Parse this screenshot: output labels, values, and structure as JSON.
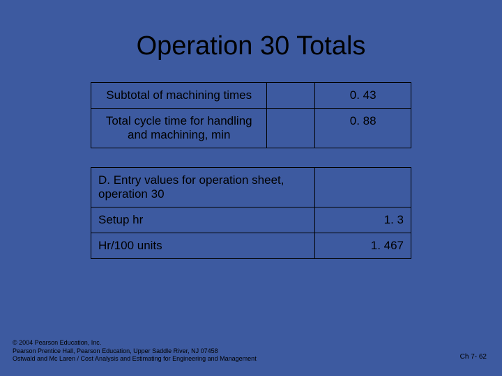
{
  "colors": {
    "background": "#3d5aa0",
    "text": "#000000",
    "border": "#000000"
  },
  "title": "Operation 30 Totals",
  "table1": {
    "rows": [
      {
        "label": "Subtotal of machining times",
        "value": "0. 43"
      },
      {
        "label": "Total cycle time for handling and machining, min",
        "value": "0. 88"
      }
    ]
  },
  "table2": {
    "header": "D. Entry values for operation sheet, operation 30",
    "rows": [
      {
        "label": "Setup hr",
        "value": "1. 3"
      },
      {
        "label": "Hr/100 units",
        "value": "1. 467"
      }
    ]
  },
  "footer": {
    "line1": "© 2004 Pearson Education, Inc.",
    "line2": "Pearson Prentice Hall, Pearson Education, Upper Saddle River, NJ 07458",
    "line3": "Ostwald and Mc Laren / Cost Analysis and Estimating for Engineering and Management",
    "pageref": "Ch 7- 62"
  }
}
